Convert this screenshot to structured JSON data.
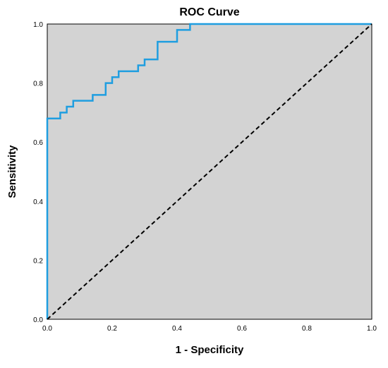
{
  "chart_data": {
    "type": "line",
    "title": "ROC Curve",
    "xlabel": "1 - Specificity",
    "ylabel": "Sensitivity",
    "xlim": [
      0,
      1
    ],
    "ylim": [
      0,
      1
    ],
    "x_ticks": [
      "0.0",
      "0.2",
      "0.4",
      "0.6",
      "0.8",
      "1.0"
    ],
    "y_ticks": [
      "0.0",
      "0.2",
      "0.4",
      "0.6",
      "0.8",
      "1.0"
    ],
    "y_tick_values": [
      0,
      0.2,
      0.4,
      0.6,
      0.8,
      1.0
    ],
    "x_tick_values": [
      0,
      0.2,
      0.4,
      0.6,
      0.8,
      1.0
    ],
    "grid": false,
    "plot_background": "#d3d3d3",
    "series": [
      {
        "style": "step",
        "color": "#1f9ee0",
        "x": [
          0.0,
          0.0,
          0.04,
          0.04,
          0.06,
          0.06,
          0.08,
          0.08,
          0.14,
          0.14,
          0.18,
          0.18,
          0.2,
          0.2,
          0.22,
          0.22,
          0.28,
          0.28,
          0.3,
          0.3,
          0.34,
          0.34,
          0.4,
          0.4,
          0.44,
          0.44,
          1.0
        ],
        "y": [
          0.0,
          0.68,
          0.68,
          0.7,
          0.7,
          0.72,
          0.72,
          0.74,
          0.74,
          0.76,
          0.76,
          0.8,
          0.8,
          0.82,
          0.82,
          0.84,
          0.84,
          0.86,
          0.86,
          0.88,
          0.88,
          0.94,
          0.94,
          0.98,
          0.98,
          1.0,
          1.0
        ]
      },
      {
        "style": "dashed",
        "color": "#000000",
        "x": [
          0,
          1
        ],
        "y": [
          0,
          1
        ]
      }
    ]
  }
}
